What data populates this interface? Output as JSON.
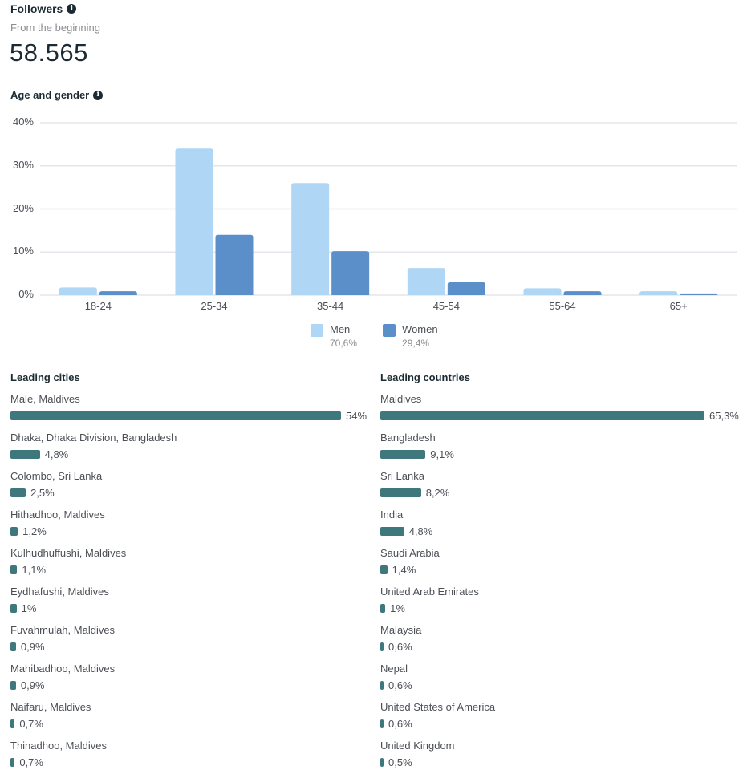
{
  "followers": {
    "title": "Followers",
    "subtitle": "From the beginning",
    "count": "58.565",
    "info_icon": "info-icon"
  },
  "age_gender": {
    "title": "Age and gender",
    "info_icon": "info-icon"
  },
  "colors": {
    "men": "#b0d6f5",
    "women": "#5b8fc9",
    "list_bar": "#3e777c",
    "grid": "#e4e6eb"
  },
  "chart_data": {
    "type": "bar",
    "title": "Age and gender",
    "xlabel": "",
    "ylabel": "",
    "categories": [
      "18-24",
      "25-34",
      "35-44",
      "45-54",
      "55-64",
      "65+"
    ],
    "series": [
      {
        "name": "Men",
        "total_label": "70,6%",
        "values": [
          1.8,
          34.0,
          26.0,
          6.3,
          1.6,
          0.9
        ]
      },
      {
        "name": "Women",
        "total_label": "29,4%",
        "values": [
          0.9,
          14.0,
          10.2,
          3.0,
          0.9,
          0.4
        ]
      }
    ],
    "ylim": [
      0,
      40
    ],
    "yticks": [
      0,
      10,
      20,
      30,
      40
    ],
    "ytick_labels": [
      "0%",
      "10%",
      "20%",
      "30%",
      "40%"
    ],
    "grid": true,
    "legend_placement": "bottom-center"
  },
  "cities": {
    "title": "Leading cities",
    "items": [
      {
        "name": "Male, Maldives",
        "value": 54,
        "label": "54%"
      },
      {
        "name": "Dhaka, Dhaka Division, Bangladesh",
        "value": 4.8,
        "label": "4,8%"
      },
      {
        "name": "Colombo, Sri Lanka",
        "value": 2.5,
        "label": "2,5%"
      },
      {
        "name": "Hithadhoo, Maldives",
        "value": 1.2,
        "label": "1,2%"
      },
      {
        "name": "Kulhudhuffushi, Maldives",
        "value": 1.1,
        "label": "1,1%"
      },
      {
        "name": "Eydhafushi, Maldives",
        "value": 1,
        "label": "1%"
      },
      {
        "name": "Fuvahmulah, Maldives",
        "value": 0.9,
        "label": "0,9%"
      },
      {
        "name": "Mahibadhoo, Maldives",
        "value": 0.9,
        "label": "0,9%"
      },
      {
        "name": "Naifaru, Maldives",
        "value": 0.7,
        "label": "0,7%"
      },
      {
        "name": "Thinadhoo, Maldives",
        "value": 0.7,
        "label": "0,7%"
      }
    ]
  },
  "countries": {
    "title": "Leading countries",
    "items": [
      {
        "name": "Maldives",
        "value": 65.3,
        "label": "65,3%"
      },
      {
        "name": "Bangladesh",
        "value": 9.1,
        "label": "9,1%"
      },
      {
        "name": "Sri Lanka",
        "value": 8.2,
        "label": "8,2%"
      },
      {
        "name": "India",
        "value": 4.8,
        "label": "4,8%"
      },
      {
        "name": "Saudi Arabia",
        "value": 1.4,
        "label": "1,4%"
      },
      {
        "name": "United Arab Emirates",
        "value": 1,
        "label": "1%"
      },
      {
        "name": "Malaysia",
        "value": 0.6,
        "label": "0,6%"
      },
      {
        "name": "Nepal",
        "value": 0.6,
        "label": "0,6%"
      },
      {
        "name": "United States of America",
        "value": 0.6,
        "label": "0,6%"
      },
      {
        "name": "United Kingdom",
        "value": 0.5,
        "label": "0,5%"
      }
    ]
  }
}
